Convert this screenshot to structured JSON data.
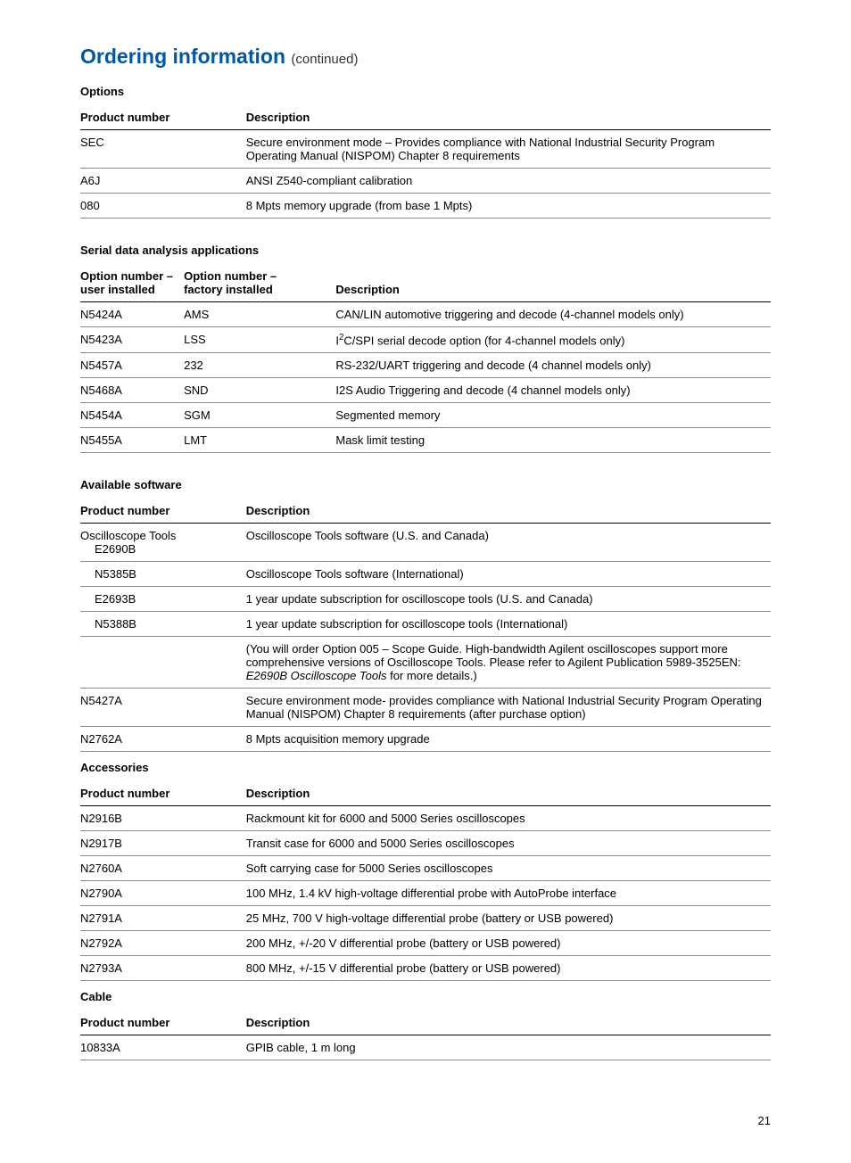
{
  "page": {
    "heading_main": "Ordering information",
    "heading_continued": "(continued)",
    "page_number": "21"
  },
  "options": {
    "title": "Options",
    "col_product": "Product number",
    "col_description": "Description",
    "rows": [
      {
        "product": "SEC",
        "description": "Secure environment mode – Provides compliance with National Industrial Security Program Operating Manual (NISPOM) Chapter 8 requirements"
      },
      {
        "product": "A6J",
        "description": "ANSI Z540-compliant calibration"
      },
      {
        "product": "080",
        "description": "8 Mpts memory upgrade (from base 1 Mpts)"
      }
    ]
  },
  "serial": {
    "title": "Serial data analysis applications",
    "col_user": "Option number – user installed",
    "col_factory": "Option number – factory installed",
    "col_description": "Description",
    "rows": [
      {
        "user": "N5424A",
        "factory": "AMS",
        "description": "CAN/LIN automotive triggering and decode (4-channel models only)"
      },
      {
        "user": "N5423A",
        "factory": "LSS",
        "description": "I²C/SPI serial decode option (for 4-channel models only)"
      },
      {
        "user": "N5457A",
        "factory": "232",
        "description": "RS-232/UART triggering and decode (4 channel models only)"
      },
      {
        "user": "N5468A",
        "factory": "SND",
        "description": "I2S Audio Triggering and decode (4 channel models only)"
      },
      {
        "user": "N5454A",
        "factory": "SGM",
        "description": "Segmented memory"
      },
      {
        "user": "N5455A",
        "factory": "LMT",
        "description": "Mask limit testing"
      }
    ]
  },
  "software": {
    "title": "Available software",
    "col_product": "Product number",
    "col_description": "Description",
    "rows": [
      {
        "product": "Oscilloscope Tools",
        "sub": "E2690B",
        "description": "Oscilloscope Tools software (U.S. and Canada)"
      },
      {
        "product": "",
        "sub": "N5385B",
        "description": "Oscilloscope Tools software (International)"
      },
      {
        "product": "",
        "sub": "E2693B",
        "description": "1 year update subscription for oscilloscope tools (U.S. and Canada)"
      },
      {
        "product": "",
        "sub": "N5388B",
        "description": "1 year update subscription for oscilloscope tools (International)"
      },
      {
        "product": "",
        "sub": "",
        "description_html": "(You will order Option 005 – Scope Guide. High-bandwidth Agilent oscilloscopes support more comprehensive versions of Oscilloscope Tools. Please refer to Agilent Publication 5989-3525EN: <span class=\"italic\">E2690B Oscilloscope Tools</span> for more details.)"
      },
      {
        "product": "N5427A",
        "description": "Secure environment mode- provides compliance with National Industrial Security Program Operating Manual (NISPOM) Chapter 8 requirements (after purchase option)"
      },
      {
        "product": "N2762A",
        "description": "8 Mpts acquisition memory upgrade"
      }
    ]
  },
  "accessories": {
    "title": "Accessories",
    "col_product": "Product number",
    "col_description": "Description",
    "rows": [
      {
        "product": "N2916B",
        "description": "Rackmount kit for 6000 and 5000 Series oscilloscopes"
      },
      {
        "product": "N2917B",
        "description": "Transit case for 6000 and 5000 Series oscilloscopes"
      },
      {
        "product": "N2760A",
        "description": "Soft carrying case for 5000 Series oscilloscopes"
      },
      {
        "product": "N2790A",
        "description": "100 MHz, 1.4 kV high-voltage differential probe with AutoProbe interface"
      },
      {
        "product": "N2791A",
        "description": "25 MHz, 700 V high-voltage differential probe (battery or USB powered)"
      },
      {
        "product": "N2792A",
        "description": "200 MHz, +/-20 V differential probe (battery or USB powered)"
      },
      {
        "product": "N2793A",
        "description": "800 MHz, +/-15 V differential probe (battery or USB powered)"
      }
    ]
  },
  "cable": {
    "title": "Cable",
    "col_product": "Product number",
    "col_description": "Description",
    "rows": [
      {
        "product": "10833A",
        "description": "GPIB cable, 1 m long"
      }
    ]
  }
}
